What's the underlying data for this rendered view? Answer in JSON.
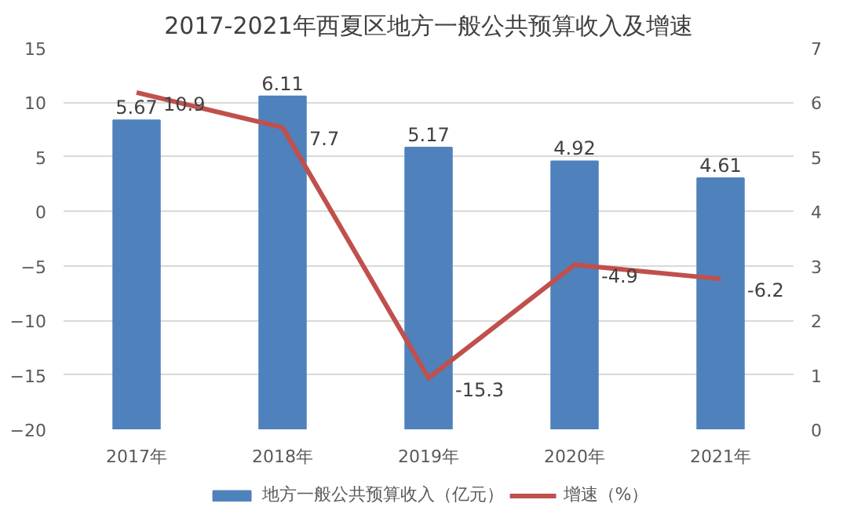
{
  "chart_data": {
    "type": "bar",
    "title": "2017-2021年西夏区地方一般公共预算收入及增速",
    "categories": [
      "2017年",
      "2018年",
      "2019年",
      "2020年",
      "2021年"
    ],
    "series": [
      {
        "name": "地方一般公共预算收入（亿元）",
        "axis": "y2",
        "color": "#4f81bd",
        "values": [
          5.67,
          6.11,
          5.17,
          4.92,
          4.61
        ]
      },
      {
        "name": "增速（%）",
        "type": "line",
        "color": "#c0504d",
        "values": [
          10.9,
          7.7,
          -15.3,
          -4.9,
          -6.2
        ]
      }
    ],
    "ylim": [
      -20,
      15
    ],
    "yticks": [
      -20,
      -15,
      -10,
      -5,
      0,
      5,
      10,
      15
    ],
    "y2lim": [
      0,
      7
    ],
    "y2ticks": [
      0,
      1,
      2,
      3,
      4,
      5,
      6,
      7
    ],
    "grid": "y",
    "legend": "bottom",
    "data_labels": true,
    "marker": "none",
    "line_style": "solid"
  }
}
